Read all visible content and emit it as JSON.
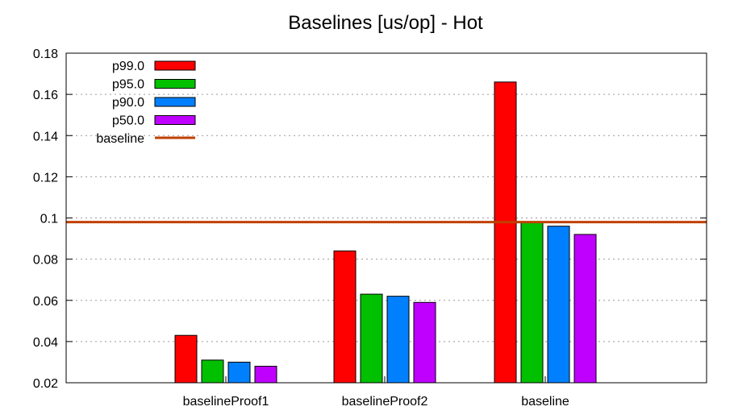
{
  "chart_data": {
    "type": "bar",
    "title": "Baselines [us/op] - Hot",
    "xlabel": "",
    "ylabel": "",
    "categories": [
      "baselineProof1",
      "baselineProof2",
      "baseline"
    ],
    "series": [
      {
        "name": "p99.0",
        "color": "#ff0000",
        "values": [
          0.043,
          0.084,
          0.166
        ]
      },
      {
        "name": "p95.0",
        "color": "#00c000",
        "values": [
          0.031,
          0.063,
          0.098
        ]
      },
      {
        "name": "p90.0",
        "color": "#0080ff",
        "values": [
          0.03,
          0.062,
          0.096
        ]
      },
      {
        "name": "p50.0",
        "color": "#c000ff",
        "values": [
          0.028,
          0.059,
          0.092
        ]
      }
    ],
    "reference_line": {
      "name": "baseline",
      "color": "#c04000",
      "value": 0.098
    },
    "ylim": [
      0.02,
      0.18
    ],
    "yticks": [
      "0.02",
      "0.04",
      "0.06",
      "0.08",
      "0.1",
      "0.12",
      "0.14",
      "0.16",
      "0.18"
    ],
    "grid": "horizontal-dotted",
    "legend": "top-left"
  }
}
